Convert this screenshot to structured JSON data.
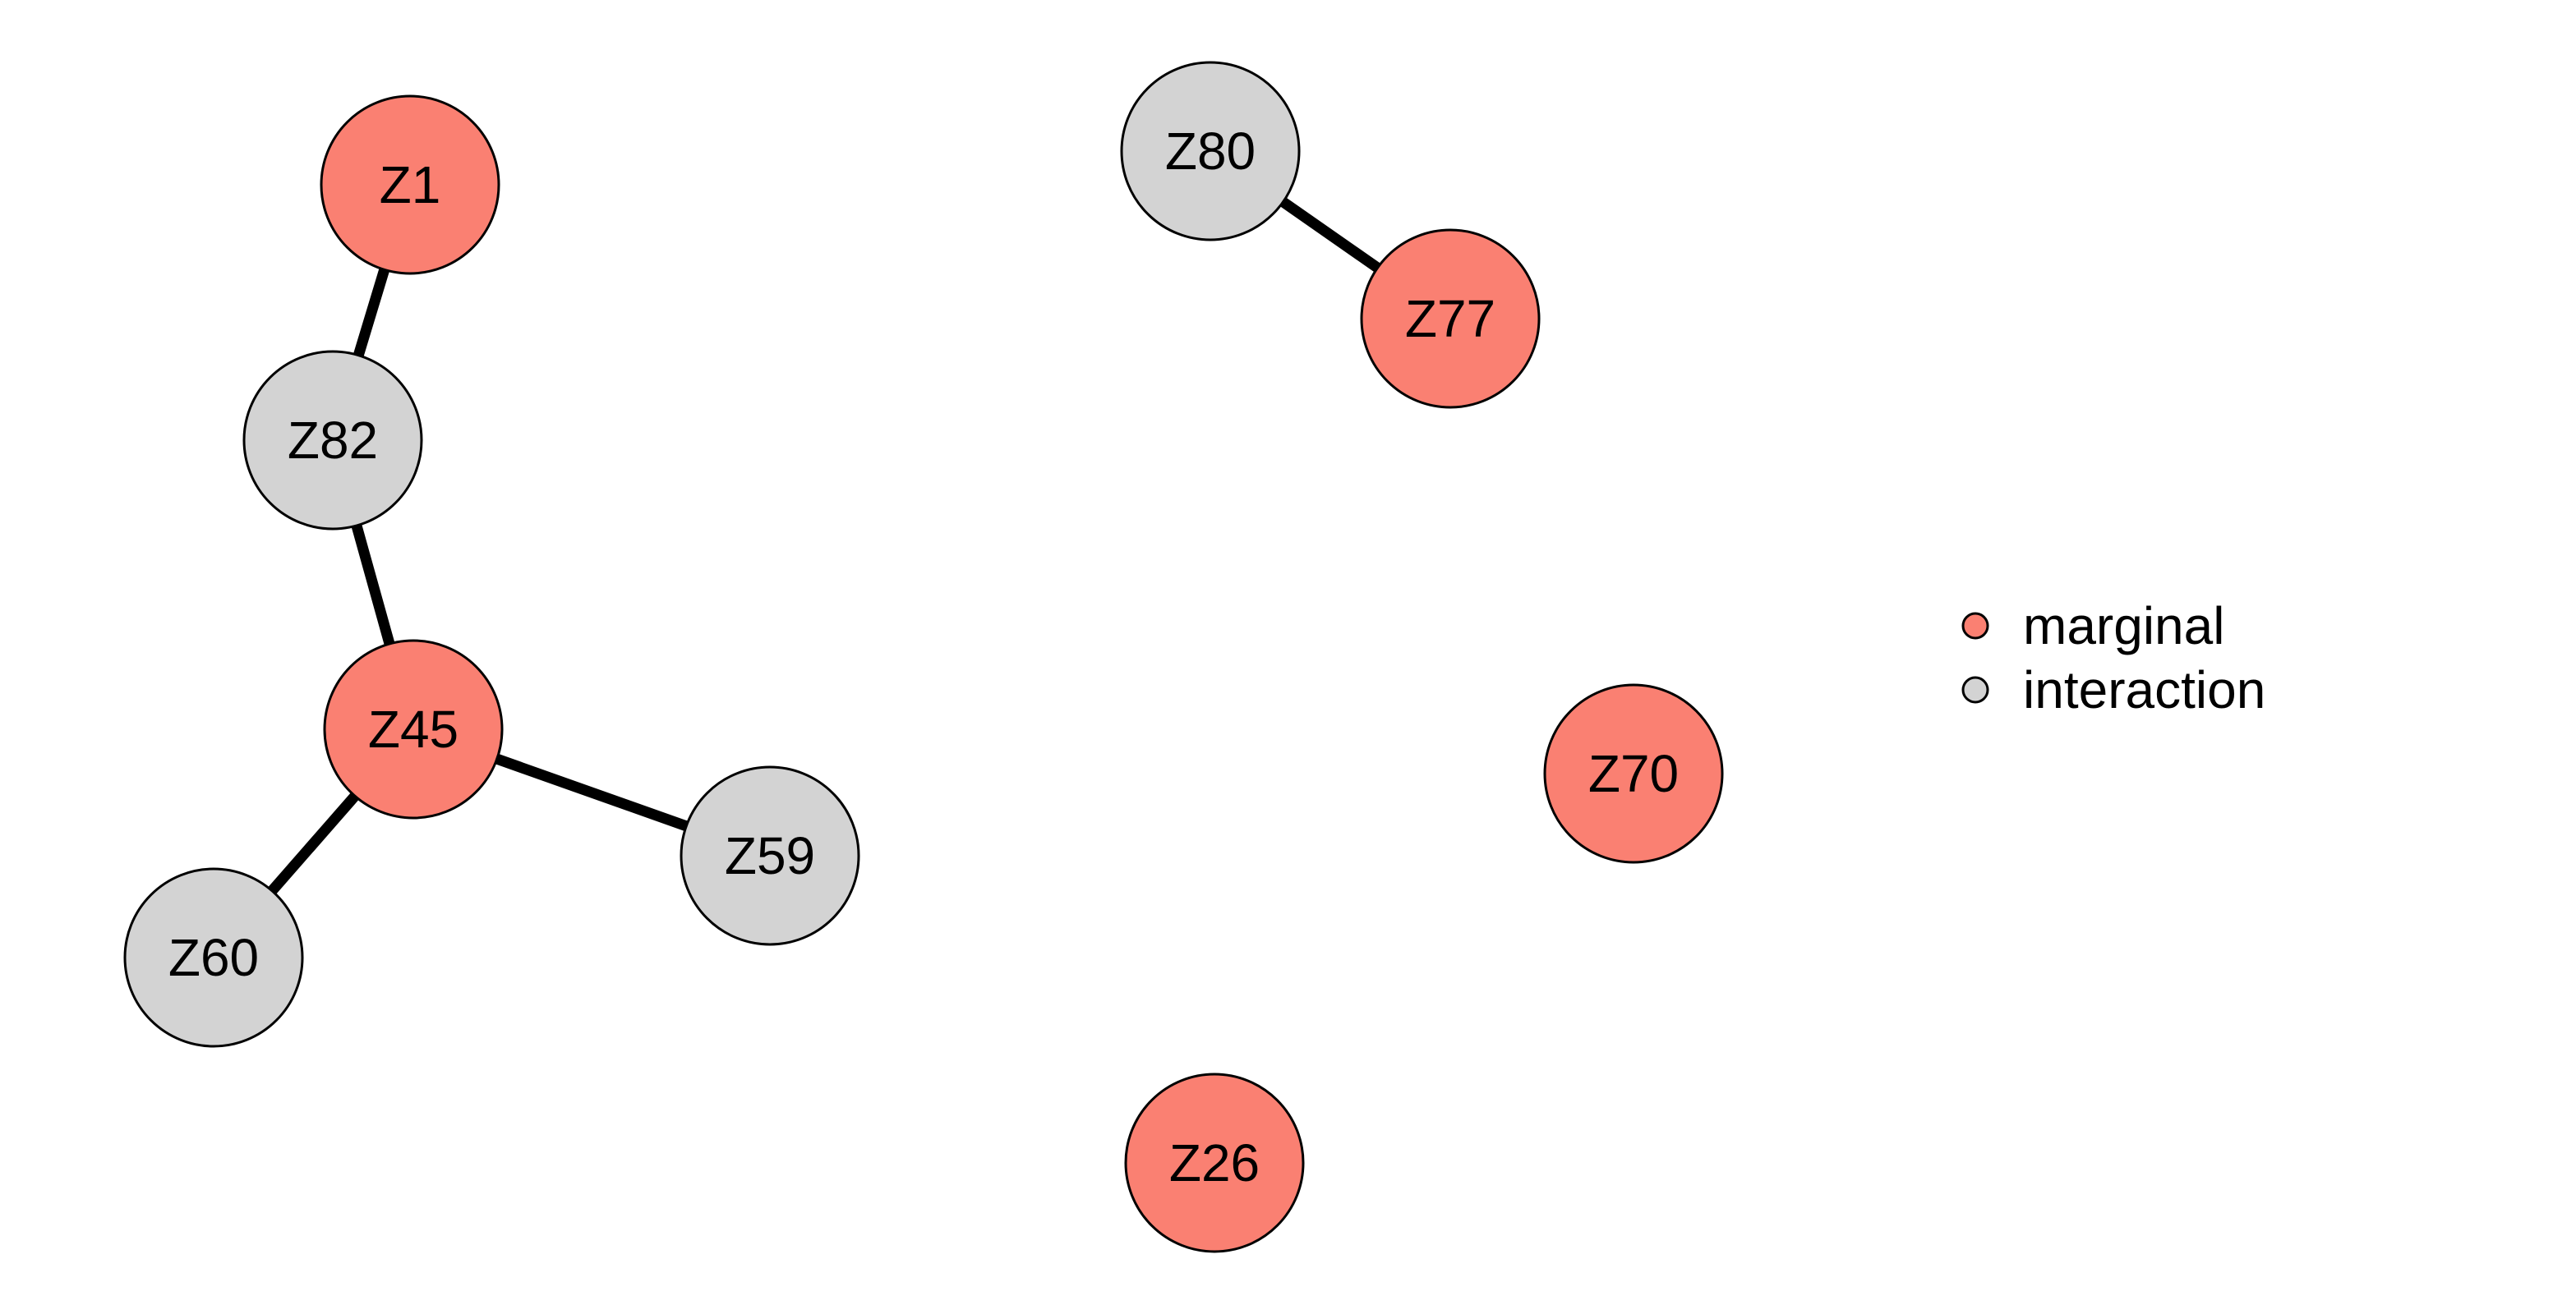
{
  "graph": {
    "nodes": [
      {
        "id": "Z1",
        "label": "Z1",
        "type": "marginal"
      },
      {
        "id": "Z82",
        "label": "Z82",
        "type": "interaction"
      },
      {
        "id": "Z45",
        "label": "Z45",
        "type": "marginal"
      },
      {
        "id": "Z59",
        "label": "Z59",
        "type": "interaction"
      },
      {
        "id": "Z60",
        "label": "Z60",
        "type": "interaction"
      },
      {
        "id": "Z80",
        "label": "Z80",
        "type": "interaction"
      },
      {
        "id": "Z77",
        "label": "Z77",
        "type": "marginal"
      },
      {
        "id": "Z70",
        "label": "Z70",
        "type": "marginal"
      },
      {
        "id": "Z26",
        "label": "Z26",
        "type": "marginal"
      }
    ],
    "edges": [
      {
        "source": "Z1",
        "target": "Z82"
      },
      {
        "source": "Z82",
        "target": "Z45"
      },
      {
        "source": "Z45",
        "target": "Z59"
      },
      {
        "source": "Z45",
        "target": "Z60"
      },
      {
        "source": "Z80",
        "target": "Z77"
      }
    ]
  },
  "legend": {
    "items": [
      {
        "type": "marginal",
        "label": "marginal"
      },
      {
        "type": "interaction",
        "label": "interaction"
      }
    ]
  },
  "colors": {
    "marginal": "#FA8072",
    "interaction": "#D3D3D3",
    "edge": "#000000",
    "node_border": "#000000"
  }
}
